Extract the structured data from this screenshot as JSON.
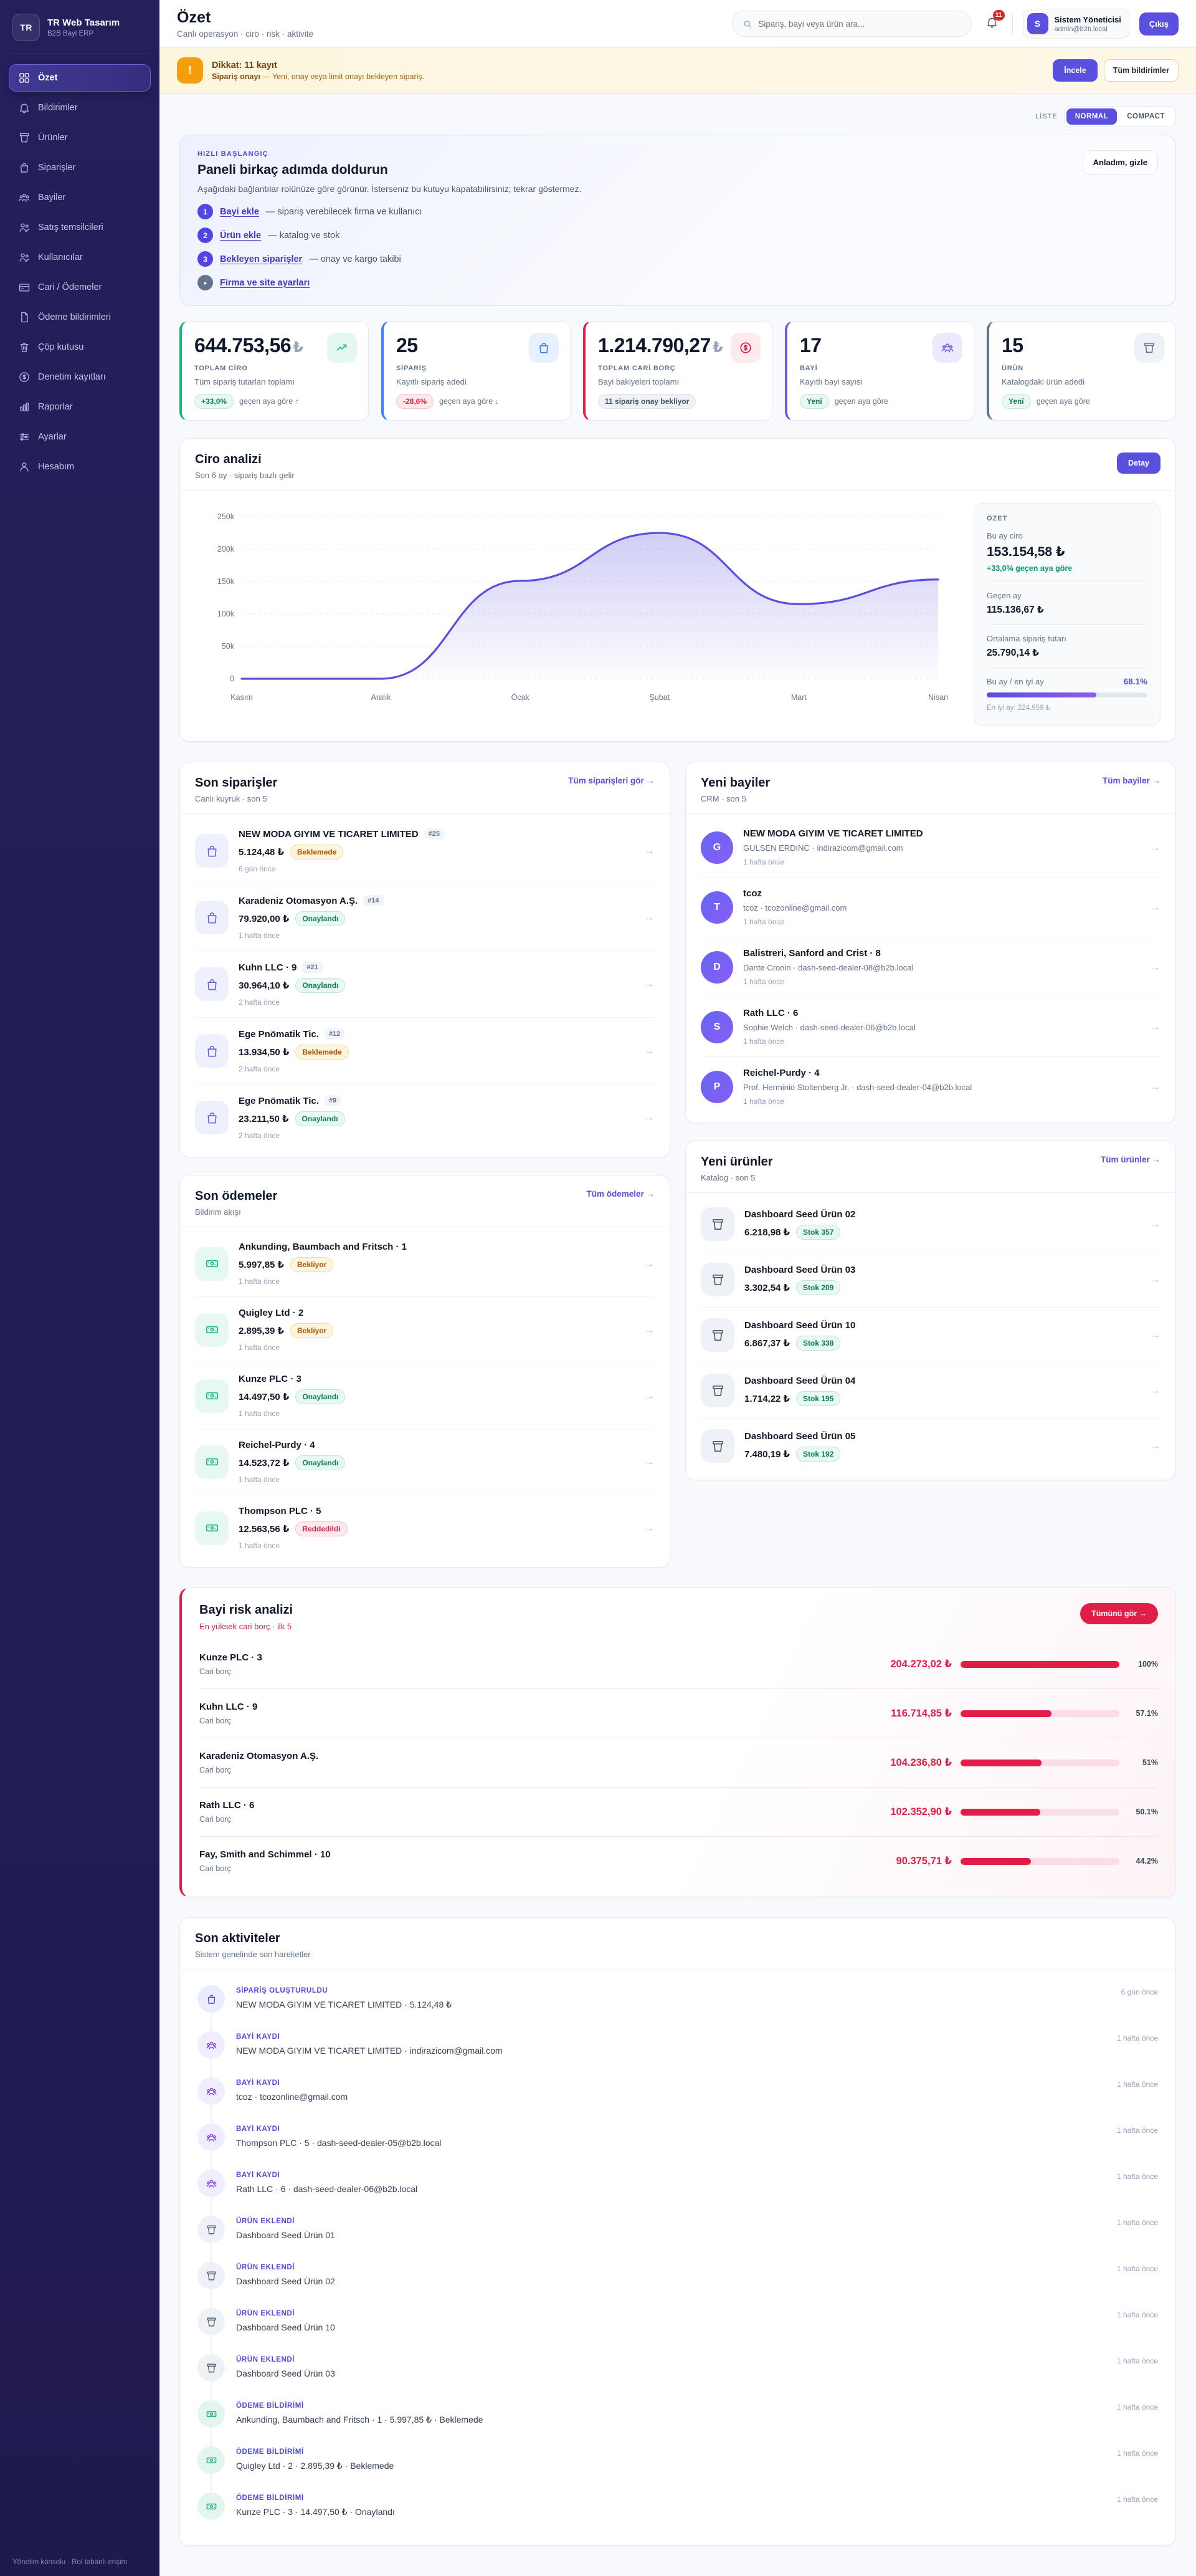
{
  "colors": {
    "accent": "#5b4fe0",
    "sidebar_bg": "#221c53",
    "success": "#10b981",
    "warning": "#d97706",
    "danger": "#e11d48",
    "banner_bg": "#fdf6de",
    "chart_line": "#5b4fe0",
    "risk": "#e11d48"
  },
  "sidebar": {
    "logo_initials": "TR",
    "brand": "TR Web Tasarım",
    "brand_sub": "B2B Bayi ERP",
    "items": [
      {
        "label": "Özet",
        "active": true
      },
      {
        "label": "Bildirimler"
      },
      {
        "label": "Ürünler"
      },
      {
        "label": "Siparişler"
      },
      {
        "label": "Bayiler"
      },
      {
        "label": "Satış temsilcileri"
      },
      {
        "label": "Kullanıcılar"
      },
      {
        "label": "Cari / Ödemeler"
      },
      {
        "label": "Ödeme bildirimleri"
      },
      {
        "label": "Çöp kutusu"
      },
      {
        "label": "Denetim kayıtları"
      },
      {
        "label": "Raporlar"
      },
      {
        "label": "Ayarlar"
      },
      {
        "label": "Hesabım"
      }
    ],
    "footer": "Yönetim konsolu · Rol tabanlı erişim"
  },
  "header": {
    "title": "Özet",
    "subtitle": "Canlı operasyon · ciro · risk · aktivite",
    "search_placeholder": "Sipariş, bayi veya ürün ara...",
    "notification_count": "11",
    "user": {
      "initial": "S",
      "name": "Sistem Yöneticisi",
      "email": "admin@b2b.local"
    },
    "logout_label": "Çıkış"
  },
  "alert": {
    "title": "Dikkat: 11 kayıt",
    "message_strong": "Sipariş onayı",
    "message_rest": " — Yeni, onay veya limit onayı bekleyen sipariş.",
    "primary_label": "İncele",
    "secondary_label": "Tüm bildirimler"
  },
  "view_toggle": {
    "label": "LİSTE",
    "normal": "NORMAL",
    "compact": "COMPACT",
    "active": "NORMAL"
  },
  "quick_start": {
    "eyebrow": "HIZLI BAŞLANGIÇ",
    "title": "Paneli birkaç adımda doldurun",
    "desc": "Aşağıdaki bağlantılar rolünüze göre görünür. İsterseniz bu kutuyu kapatabilirsiniz; tekrar göstermez.",
    "dismiss_label": "Anladım, gizle",
    "steps": [
      {
        "num": "1",
        "link": "Bayi ekle",
        "desc": "— sipariş verebilecek firma ve kullanıcı",
        "tone": "accent"
      },
      {
        "num": "2",
        "link": "Ürün ekle",
        "desc": "— katalog ve stok",
        "tone": "accent"
      },
      {
        "num": "3",
        "link": "Bekleyen siparişler",
        "desc": "— onay ve kargo takibi",
        "tone": "accent"
      },
      {
        "num": "•",
        "link": "Firma ve site ayarları",
        "desc": "",
        "tone": "muted"
      }
    ]
  },
  "kpis": [
    {
      "value": "644.753,56",
      "currency": "₺",
      "label": "TOPLAM CİRO",
      "desc": "Tüm sipariş tutarları toplamı",
      "badge": "+33,0%",
      "badge_tone": "success",
      "suffix": "geçen aya göre ↑",
      "accent": "#10b981"
    },
    {
      "value": "25",
      "currency": "",
      "label": "SİPARİŞ",
      "desc": "Kayıtlı sipariş adedi",
      "badge": "-28,6%",
      "badge_tone": "danger",
      "suffix": "geçen aya göre ↓",
      "accent": "#3b82f6"
    },
    {
      "value": "1.214.790,27",
      "currency": "₺",
      "label": "TOPLAM CARİ BORÇ",
      "desc": "Bayi bakiyeleri toplamı",
      "badge": "11 sipariş onay bekliyor",
      "badge_tone": "neutral",
      "suffix": "",
      "accent": "#e11d48"
    },
    {
      "value": "17",
      "currency": "",
      "label": "BAYİ",
      "desc": "Kayıtlı bayi sayısı",
      "badge": "Yeni",
      "badge_tone": "success",
      "suffix": "geçen aya göre",
      "accent": "#6d5be0"
    },
    {
      "value": "15",
      "currency": "",
      "label": "ÜRÜN",
      "desc": "Katalogdaki ürün adedi",
      "badge": "Yeni",
      "badge_tone": "success",
      "suffix": "geçen aya göre",
      "accent": "#64748b"
    }
  ],
  "chart_data": {
    "type": "area",
    "title": "Ciro analizi",
    "subtitle": "Son 6 ay · sipariş bazlı gelir",
    "categories": [
      "Kasım",
      "Aralık",
      "Ocak",
      "Şubat",
      "Mart",
      "Nisan"
    ],
    "values": [
      0,
      0,
      151000,
      224959,
      115137,
      153155
    ],
    "xlabel": "",
    "ylabel": "",
    "ylim": [
      0,
      250000
    ],
    "yticks": [
      {
        "value": 0,
        "label": "0"
      },
      {
        "value": 50000,
        "label": "50k"
      },
      {
        "value": 100000,
        "label": "100k"
      },
      {
        "value": 150000,
        "label": "150k"
      },
      {
        "value": 200000,
        "label": "200k"
      },
      {
        "value": 250000,
        "label": "250k"
      }
    ],
    "grid": "dashed-horizontal",
    "legend": "none",
    "line_color": "#5b4fe0"
  },
  "revenue": {
    "title": "Ciro analizi",
    "subtitle": "Son 6 ay · sipariş bazlı gelir",
    "detail_label": "Detay",
    "summary": {
      "heading": "ÖZET",
      "this_month_label": "Bu ay ciro",
      "this_month_value": "153.154,58 ₺",
      "delta": "+33,0% geçen aya göre",
      "last_month_label": "Geçen ay",
      "last_month_value": "115.136,67 ₺",
      "avg_label": "Ortalama sipariş tutarı",
      "avg_value": "25.790,14 ₺",
      "ratio_label": "Bu ay / en iyi ay",
      "ratio_value": "68.1%",
      "ratio_pct": 68.1,
      "best_label": "En iyi ay: 224.959 ₺"
    }
  },
  "sections": {
    "orders": {
      "title": "Son siparişler",
      "subtitle": "Canlı kuyruk · son 5",
      "link": "Tüm siparişleri gör →",
      "items": [
        {
          "name": "NEW MODA GIYIM VE TICARET LIMITED",
          "number": "#25",
          "amount": "5.124,48 ₺",
          "status": "Beklemede",
          "tone": "warning",
          "time": "6 gün önce"
        },
        {
          "name": "Karadeniz Otomasyon A.Ş.",
          "number": "#14",
          "amount": "79.920,00 ₺",
          "status": "Onaylandı",
          "tone": "success",
          "time": "1 hafta önce"
        },
        {
          "name": "Kuhn LLC · 9",
          "number": "#21",
          "amount": "30.964,10 ₺",
          "status": "Onaylandı",
          "tone": "success",
          "time": "2 hafta önce"
        },
        {
          "name": "Ege Pnömatik Tic.",
          "number": "#12",
          "amount": "13.934,50 ₺",
          "status": "Beklemede",
          "tone": "warning",
          "time": "2 hafta önce"
        },
        {
          "name": "Ege Pnömatik Tic.",
          "number": "#9",
          "amount": "23.211,50 ₺",
          "status": "Onaylandı",
          "tone": "success",
          "time": "2 hafta önce"
        }
      ]
    },
    "dealers": {
      "title": "Yeni bayiler",
      "subtitle": "CRM · son 5",
      "link": "Tüm bayiler →",
      "items": [
        {
          "initial": "G",
          "name": "NEW MODA GIYIM VE TICARET LIMITED",
          "detail": "GULSEN ERDINC · indirazicom@gmail.com",
          "time": "1 hafta önce"
        },
        {
          "initial": "T",
          "name": "tcoz",
          "detail": "tcoz · tcozonline@gmail.com",
          "time": "1 hafta önce"
        },
        {
          "initial": "D",
          "name": "Balistreri, Sanford and Crist · 8",
          "detail": "Dante Cronin · dash-seed-dealer-08@b2b.local",
          "time": "1 hafta önce"
        },
        {
          "initial": "S",
          "name": "Rath LLC · 6",
          "detail": "Sophie Welch · dash-seed-dealer-06@b2b.local",
          "time": "1 hafta önce"
        },
        {
          "initial": "P",
          "name": "Reichel-Purdy · 4",
          "detail": "Prof. Herminio Stoltenberg Jr. · dash-seed-dealer-04@b2b.local",
          "time": "1 hafta önce"
        }
      ]
    },
    "payments": {
      "title": "Son ödemeler",
      "subtitle": "Bildirim akışı",
      "link": "Tüm ödemeler →",
      "items": [
        {
          "name": "Ankunding, Baumbach and Fritsch · 1",
          "amount": "5.997,85 ₺",
          "status": "Bekliyor",
          "tone": "warning",
          "time": "1 hafta önce"
        },
        {
          "name": "Quigley Ltd · 2",
          "amount": "2.895,39 ₺",
          "status": "Bekliyor",
          "tone": "warning",
          "time": "1 hafta önce"
        },
        {
          "name": "Kunze PLC · 3",
          "amount": "14.497,50 ₺",
          "status": "Onaylandı",
          "tone": "success",
          "time": "1 hafta önce"
        },
        {
          "name": "Reichel-Purdy · 4",
          "amount": "14.523,72 ₺",
          "status": "Onaylandı",
          "tone": "success",
          "time": "1 hafta önce"
        },
        {
          "name": "Thompson PLC · 5",
          "amount": "12.563,56 ₺",
          "status": "Reddedildi",
          "tone": "danger",
          "time": "1 hafta önce"
        }
      ]
    },
    "products": {
      "title": "Yeni ürünler",
      "subtitle": "Katalog · son 5",
      "link": "Tüm ürünler →",
      "items": [
        {
          "name": "Dashboard Seed Ürün 02",
          "price": "6.218,98 ₺",
          "stock": "Stok 357",
          "tone": "success"
        },
        {
          "name": "Dashboard Seed Ürün 03",
          "price": "3.302,54 ₺",
          "stock": "Stok 209",
          "tone": "success"
        },
        {
          "name": "Dashboard Seed Ürün 10",
          "price": "6.867,37 ₺",
          "stock": "Stok 338",
          "tone": "success"
        },
        {
          "name": "Dashboard Seed Ürün 04",
          "price": "1.714,22 ₺",
          "stock": "Stok 195",
          "tone": "success"
        },
        {
          "name": "Dashboard Seed Ürün 05",
          "price": "7.480,19 ₺",
          "stock": "Stok 192",
          "tone": "success"
        }
      ]
    }
  },
  "risk": {
    "title": "Bayi risk analizi",
    "subtitle": "En yüksek cari borç · ilk 5",
    "link": "Tümünü gör →",
    "items": [
      {
        "name": "Kunze PLC · 3",
        "label": "Cari borç",
        "amount": "204.273,02 ₺",
        "pct": "100%",
        "pct_num": 100
      },
      {
        "name": "Kuhn LLC · 9",
        "label": "Cari borç",
        "amount": "116.714,85 ₺",
        "pct": "57.1%",
        "pct_num": 57.1
      },
      {
        "name": "Karadeniz Otomasyon A.Ş.",
        "label": "Cari borç",
        "amount": "104.236,80 ₺",
        "pct": "51%",
        "pct_num": 51
      },
      {
        "name": "Rath LLC · 6",
        "label": "Cari borç",
        "amount": "102.352,90 ₺",
        "pct": "50.1%",
        "pct_num": 50.1
      },
      {
        "name": "Fay, Smith and Schimmel · 10",
        "label": "Cari borç",
        "amount": "90.375,71 ₺",
        "pct": "44.2%",
        "pct_num": 44.2
      }
    ]
  },
  "activities": {
    "title": "Son aktiviteler",
    "subtitle": "Sistem genelinde son hareketler",
    "items": [
      {
        "kind": "order",
        "type": "SİPARİŞ OLUŞTURULDU",
        "desc": "NEW MODA GIYIM VE TICARET LIMITED · 5.124,48 ₺",
        "time": "6 gün önce"
      },
      {
        "kind": "dealer",
        "type": "BAYİ KAYDI",
        "desc": "NEW MODA GIYIM VE TICARET LIMITED · indirazicom@gmail.com",
        "time": "1 hafta önce"
      },
      {
        "kind": "dealer",
        "type": "BAYİ KAYDI",
        "desc": "tcoz · tcozonline@gmail.com",
        "time": "1 hafta önce"
      },
      {
        "kind": "dealer",
        "type": "BAYİ KAYDI",
        "desc": "Thompson PLC · 5 · dash-seed-dealer-05@b2b.local",
        "time": "1 hafta önce"
      },
      {
        "kind": "dealer",
        "type": "BAYİ KAYDI",
        "desc": "Rath LLC · 6 · dash-seed-dealer-06@b2b.local",
        "time": "1 hafta önce"
      },
      {
        "kind": "product",
        "type": "ÜRÜN EKLENDİ",
        "desc": "Dashboard Seed Ürün 01",
        "time": "1 hafta önce"
      },
      {
        "kind": "product",
        "type": "ÜRÜN EKLENDİ",
        "desc": "Dashboard Seed Ürün 02",
        "time": "1 hafta önce"
      },
      {
        "kind": "product",
        "type": "ÜRÜN EKLENDİ",
        "desc": "Dashboard Seed Ürün 10",
        "time": "1 hafta önce"
      },
      {
        "kind": "product",
        "type": "ÜRÜN EKLENDİ",
        "desc": "Dashboard Seed Ürün 03",
        "time": "1 hafta önce"
      },
      {
        "kind": "payment",
        "type": "ÖDEME BİLDİRİMİ",
        "desc": "Ankunding, Baumbach and Fritsch · 1 · 5.997,85 ₺ · Beklemede",
        "time": "1 hafta önce"
      },
      {
        "kind": "payment",
        "type": "ÖDEME BİLDİRİMİ",
        "desc": "Quigley Ltd · 2 · 2.895,39 ₺ · Beklemede",
        "time": "1 hafta önce"
      },
      {
        "kind": "payment",
        "type": "ÖDEME BİLDİRİMİ",
        "desc": "Kunze PLC · 3 · 14.497,50 ₺ · Onaylandı",
        "time": "1 hafta önce"
      }
    ]
  }
}
